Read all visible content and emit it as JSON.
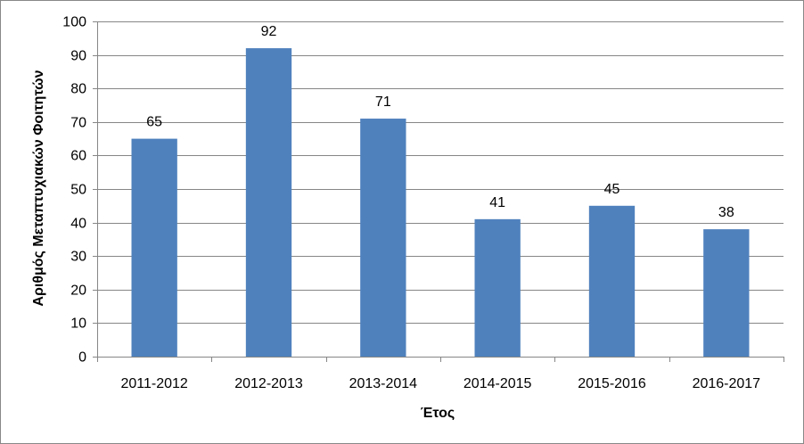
{
  "chart_data": {
    "type": "bar",
    "title": "",
    "xlabel": "Έτος",
    "ylabel": "Αριθμός Μεταπτυχιακών Φοιτητών",
    "categories": [
      "2011-2012",
      "2012-2013",
      "2013-2014",
      "2014-2015",
      "2015-2016",
      "2016-2017"
    ],
    "series": [
      {
        "values": [
          65,
          92,
          71,
          41,
          45,
          38
        ]
      }
    ],
    "data_labels": [
      "65",
      "92",
      "71",
      "41",
      "45",
      "38"
    ],
    "ylim": [
      0,
      100
    ],
    "yticks": [
      "0",
      "10",
      "20",
      "30",
      "40",
      "50",
      "60",
      "70",
      "80",
      "90",
      "100"
    ],
    "grid": "horizontal",
    "legend": "none",
    "colors": {
      "bar": "#4F81BD",
      "grid": "#868686",
      "axis": "#868686"
    }
  }
}
